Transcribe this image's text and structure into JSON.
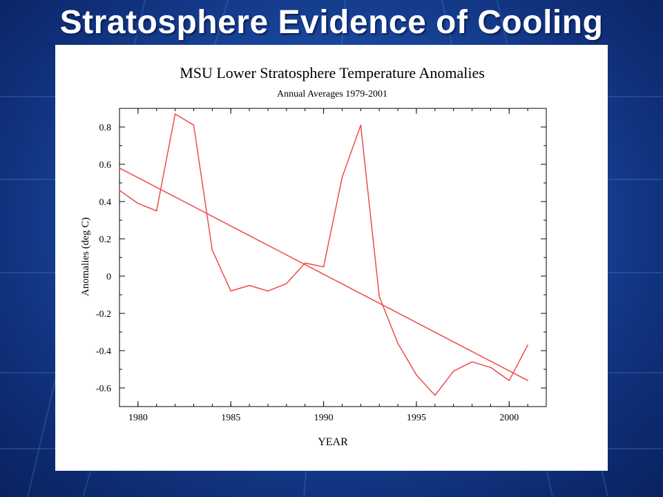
{
  "slide": {
    "title": "Stratosphere Evidence of Cooling"
  },
  "colors": {
    "background": "#1b4aa3",
    "title_text": "#ffffff",
    "series_line": "#f04848",
    "axis": "#000000"
  },
  "chart_data": {
    "type": "line",
    "title": "MSU Lower Stratosphere Temperature Anomalies",
    "subtitle": "Annual Averages 1979-2001",
    "xlabel": "YEAR",
    "ylabel": "Anomalies (deg C)",
    "xlim": [
      1979,
      2002
    ],
    "ylim": [
      -0.7,
      0.9
    ],
    "x_ticks": [
      1980,
      1985,
      1990,
      1995,
      2000
    ],
    "y_ticks": [
      -0.6,
      -0.4,
      -0.2,
      0,
      0.2,
      0.4,
      0.6,
      0.8
    ],
    "y_tick_labels": [
      "-0.6",
      "-0.4",
      "-0.2",
      "0",
      "0.2",
      "0.4",
      "0.6",
      "0.8"
    ],
    "grid": false,
    "series": [
      {
        "x": [
          1979,
          1980,
          1981,
          1982,
          1983,
          1984,
          1985,
          1986,
          1987,
          1988,
          1989,
          1990,
          1991,
          1992,
          1993,
          1994,
          1995,
          1996,
          1997,
          1998,
          1999,
          2000,
          2001
        ],
        "values": [
          0.46,
          0.39,
          0.35,
          0.87,
          0.81,
          0.14,
          -0.08,
          -0.05,
          -0.08,
          -0.04,
          0.07,
          0.05,
          0.53,
          0.81,
          -0.11,
          -0.36,
          -0.53,
          -0.64,
          -0.51,
          -0.46,
          -0.49,
          -0.56,
          -0.37
        ],
        "color": "#f04848"
      },
      {
        "x": [
          1979,
          2001
        ],
        "values": [
          0.58,
          -0.56
        ],
        "color": "#f04848"
      }
    ]
  }
}
